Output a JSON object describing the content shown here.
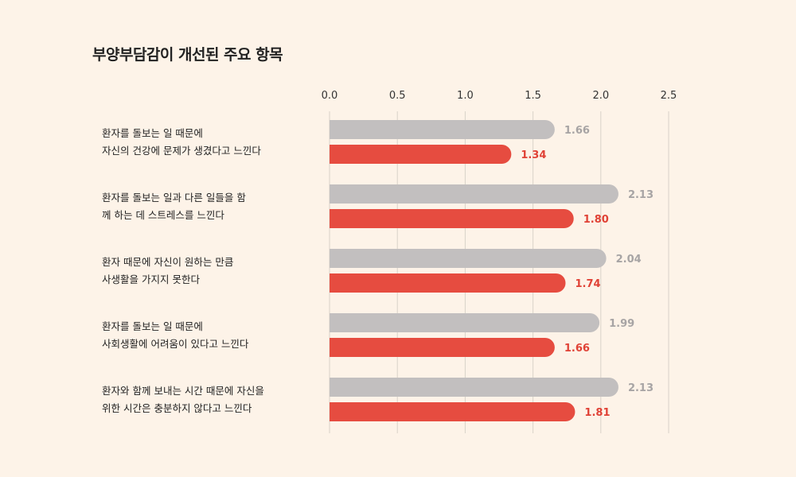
{
  "chart_data": {
    "type": "bar",
    "orientation": "horizontal",
    "title": "부양부담감이 개선된 주요 항목",
    "xlim": [
      0,
      2.5
    ],
    "x_ticks": [
      "0.0",
      "0.5",
      "1.0",
      "1.5",
      "2.0",
      "2.5"
    ],
    "grid": true,
    "categories": [
      [
        "환자를 돌보는 일 때문에",
        "자신의 건강에 문제가 생겼다고 느낀다"
      ],
      [
        "환자를 돌보는 일과 다른 일들을 함",
        "께 하는 데 스트레스를 느낀다"
      ],
      [
        "환자 때문에 자신이 원하는 만큼",
        "사생활을 가지지 못한다"
      ],
      [
        "환자를 돌보는 일 때문에",
        "사회생활에 어려움이 있다고 느낀다"
      ],
      [
        "환자와 함께 보내는 시간 때문에 자신을",
        "위한 시간은 충분하지 않다고 느낀다"
      ]
    ],
    "series": [
      {
        "values": [
          1.66,
          2.13,
          2.04,
          1.99,
          2.13
        ],
        "labels": [
          "1.66",
          "2.13",
          "2.04",
          "1.99",
          "2.13"
        ],
        "color": "#c2bfbf",
        "label_color": "#a7a4a4"
      },
      {
        "values": [
          1.34,
          1.8,
          1.74,
          1.66,
          1.81
        ],
        "labels": [
          "1.34",
          "1.80",
          "1.74",
          "1.66",
          "1.81"
        ],
        "color": "#e64c40",
        "label_color": "#e04236"
      }
    ]
  }
}
